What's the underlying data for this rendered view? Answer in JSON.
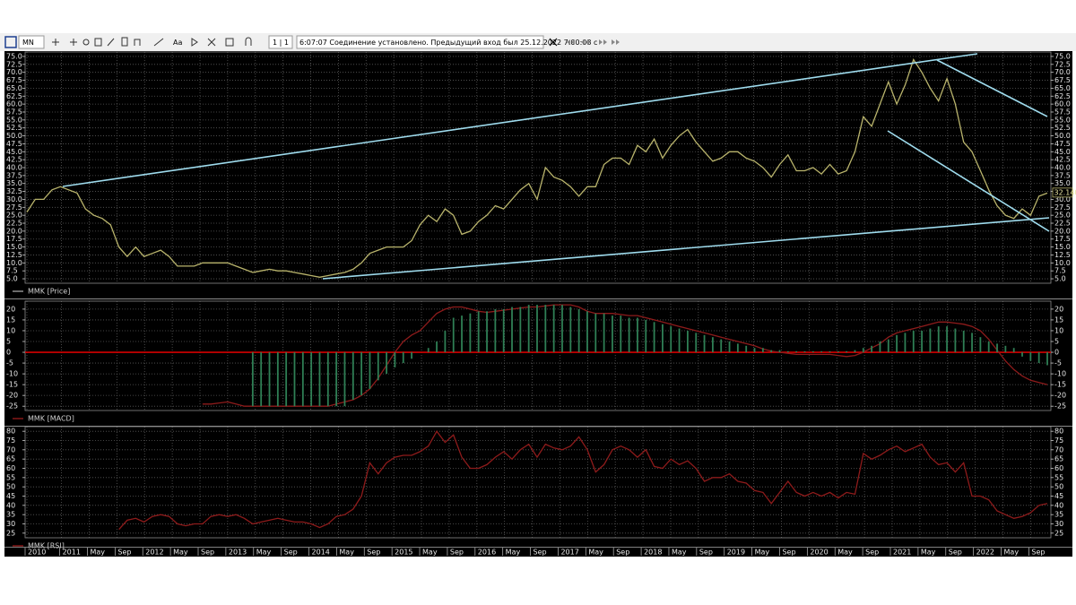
{
  "toolbar": {
    "symbol": "MN",
    "font_button": "Aa",
    "page": "1 | 1",
    "status": "6:07:07  Соединение установлено. Предыдущий вход был 25.12.2022 7:00:08 с"
  },
  "time_axis": {
    "labels": [
      "2010",
      "2011",
      "May",
      "Sep",
      "2012",
      "May",
      "Sep",
      "2013",
      "May",
      "Sep",
      "2014",
      "May",
      "Sep",
      "2015",
      "May",
      "Sep",
      "2016",
      "May",
      "Sep",
      "2017",
      "May",
      "Sep",
      "2018",
      "May",
      "Sep",
      "2019",
      "May",
      "Sep",
      "2020",
      "May",
      "Sep",
      "2021",
      "May",
      "Sep",
      "2022",
      "May",
      "Sep"
    ]
  },
  "chart_data": [
    {
      "type": "line",
      "series": [
        {
          "name": "MMK [Price]",
          "color": "#b9b46c",
          "values": [
            26,
            30,
            30,
            33,
            34,
            33,
            32,
            27,
            25,
            24,
            22,
            15,
            12,
            15,
            12,
            13,
            14,
            12,
            9,
            9,
            9,
            10,
            10,
            10,
            10,
            9,
            8,
            7,
            7.5,
            8,
            7.5,
            7.5,
            7,
            6.5,
            6,
            5.5,
            6,
            6.5,
            7,
            8,
            10,
            13,
            14,
            15,
            15,
            15,
            17,
            22,
            25,
            23,
            27,
            25,
            19,
            20,
            23,
            25,
            28,
            27,
            30,
            33,
            35,
            30,
            40,
            37,
            36,
            34,
            31,
            34,
            34,
            41,
            43,
            43,
            41,
            47,
            45,
            49,
            43,
            47,
            50,
            52,
            48,
            45,
            42,
            43,
            45,
            45,
            43,
            42,
            40,
            37,
            41,
            44,
            39,
            39,
            40,
            38,
            41,
            38,
            39,
            45,
            56,
            53,
            60,
            67,
            60,
            66,
            74,
            70,
            65,
            61,
            68,
            60,
            48,
            45,
            39,
            33,
            28,
            25,
            24,
            27,
            25,
            31,
            32
          ]
        }
      ],
      "last_value": {
        "value": 32.14,
        "label": "32.140"
      },
      "ylim": [
        3.6,
        76.4
      ],
      "yticks": [
        {
          "value": 5,
          "label": "5.0"
        },
        7.5,
        {
          "value": 10,
          "label": "10.0"
        },
        12.5,
        {
          "value": 15,
          "label": "15.0"
        },
        17.5,
        {
          "value": 20,
          "label": "20.0"
        },
        22.5,
        {
          "value": 25,
          "label": "25.0"
        },
        27.5,
        {
          "value": 30,
          "label": "30.0"
        },
        32.5,
        {
          "value": 35,
          "label": "35.0"
        },
        37.5,
        {
          "value": 40,
          "label": "40.0"
        },
        42.5,
        {
          "value": 45,
          "label": "45.0"
        },
        47.5,
        {
          "value": 50,
          "label": "50.0"
        },
        52.5,
        {
          "value": 55,
          "label": "55.0"
        },
        57.5,
        {
          "value": 60,
          "label": "60.0"
        },
        62.5,
        {
          "value": 65,
          "label": "65.0"
        },
        67.5,
        {
          "value": 70,
          "label": "70.0"
        },
        72.5,
        {
          "value": 75,
          "label": "75.0"
        }
      ],
      "grid": true,
      "legend_color": "#9a9a9a"
    },
    {
      "type": "line",
      "series": [
        {
          "name": "MMK [MACD]",
          "color": "#8e1b1b",
          "values": [
            null,
            null,
            null,
            null,
            null,
            null,
            null,
            null,
            null,
            null,
            null,
            null,
            null,
            null,
            null,
            null,
            null,
            null,
            null,
            null,
            null,
            -24,
            -24,
            -23.5,
            -23,
            -24,
            -25,
            -25,
            -25,
            -25,
            -25,
            -25,
            -25,
            -25,
            -25,
            -25,
            -25,
            -24,
            -23,
            -22,
            -20,
            -17,
            -12,
            -6,
            0,
            5,
            8,
            10,
            14,
            18,
            20,
            21,
            21,
            20,
            19,
            18.5,
            19,
            19.5,
            20,
            20.5,
            21,
            21,
            21.5,
            22,
            22,
            22,
            21,
            19,
            18,
            18,
            18,
            17.5,
            17,
            17,
            16,
            15,
            14,
            13,
            12,
            11,
            10,
            9,
            8,
            7,
            6,
            5,
            4,
            3,
            1.5,
            0.5,
            0,
            -0.5,
            -1,
            -1,
            -1,
            -1,
            -1,
            -1.5,
            -2,
            -1.5,
            0,
            2,
            4,
            7,
            9,
            10,
            11,
            12,
            13,
            14,
            14,
            13.5,
            13,
            12,
            10,
            6,
            1,
            -4,
            -8,
            -11,
            -13,
            -14,
            -15
          ]
        },
        {
          "type": "bar",
          "color": "#2f7f55",
          "values": [
            null,
            null,
            null,
            null,
            null,
            null,
            null,
            null,
            null,
            null,
            null,
            null,
            null,
            null,
            null,
            null,
            null,
            null,
            null,
            null,
            null,
            null,
            null,
            null,
            null,
            null,
            null,
            -25,
            -25,
            -25,
            -25,
            -25,
            -25,
            -25,
            -25,
            -25,
            -25,
            -25,
            -25,
            -22,
            -20,
            -17,
            -13,
            -10,
            -7,
            -5,
            -3,
            null,
            2,
            5,
            10,
            16,
            17,
            18,
            19,
            19,
            20,
            20,
            21,
            21,
            22,
            22,
            22,
            22,
            22,
            21,
            20,
            19,
            18,
            18,
            17,
            17,
            16,
            16,
            15,
            14,
            13,
            12,
            11,
            10,
            9,
            8,
            7,
            6,
            5,
            4,
            3,
            2,
            2,
            1,
            1,
            0.5,
            0.5,
            0.5,
            0.5,
            0.5,
            0.5,
            0.5,
            0.5,
            1,
            2,
            3,
            5,
            6,
            8,
            9,
            10,
            10,
            11,
            12,
            12,
            11,
            10,
            9,
            7,
            5,
            4,
            3,
            2,
            -2,
            -4,
            -5,
            -6
          ]
        }
      ],
      "ylim": [
        -27,
        23.7
      ],
      "yticks": [
        20,
        15,
        10,
        5,
        0,
        -5,
        -10,
        -15,
        -20,
        -25
      ],
      "grid": true,
      "zero_line_color": "#d40000",
      "legend_color": "#8e1b1b"
    },
    {
      "type": "line",
      "series": [
        {
          "name": "MMK [RSI]",
          "color": "#8e1b1b",
          "values": [
            null,
            null,
            null,
            null,
            null,
            null,
            null,
            null,
            null,
            null,
            null,
            27,
            32,
            33,
            31,
            34,
            35,
            34,
            30,
            29,
            30,
            30,
            34,
            35,
            34,
            35,
            33,
            30,
            31,
            32,
            33,
            32,
            31,
            31,
            30,
            28,
            30,
            34,
            35,
            38,
            45,
            63,
            57,
            63,
            66,
            67,
            67,
            69,
            72,
            80,
            74,
            78,
            66,
            60,
            60,
            62,
            66,
            69,
            65,
            70,
            73,
            66,
            73,
            71,
            70,
            72,
            77,
            70,
            58,
            62,
            70,
            72,
            70,
            66,
            70,
            61,
            60,
            65,
            62,
            64,
            60,
            53,
            55,
            55,
            57,
            53,
            52,
            48,
            47,
            41,
            47,
            53,
            47,
            45,
            47,
            45,
            47,
            44,
            47,
            46,
            68,
            65,
            67,
            70,
            72,
            69,
            71,
            73,
            66,
            62,
            63,
            58,
            63,
            45,
            45,
            43,
            37,
            35,
            33,
            34,
            36,
            40,
            41
          ]
        }
      ],
      "ylim": [
        22.5,
        82.5
      ],
      "yticks": [
        25,
        30,
        35,
        40,
        45,
        50,
        55,
        60,
        65,
        70,
        75,
        80
      ],
      "grid": true,
      "legend_color": "#8e1b1b"
    }
  ]
}
